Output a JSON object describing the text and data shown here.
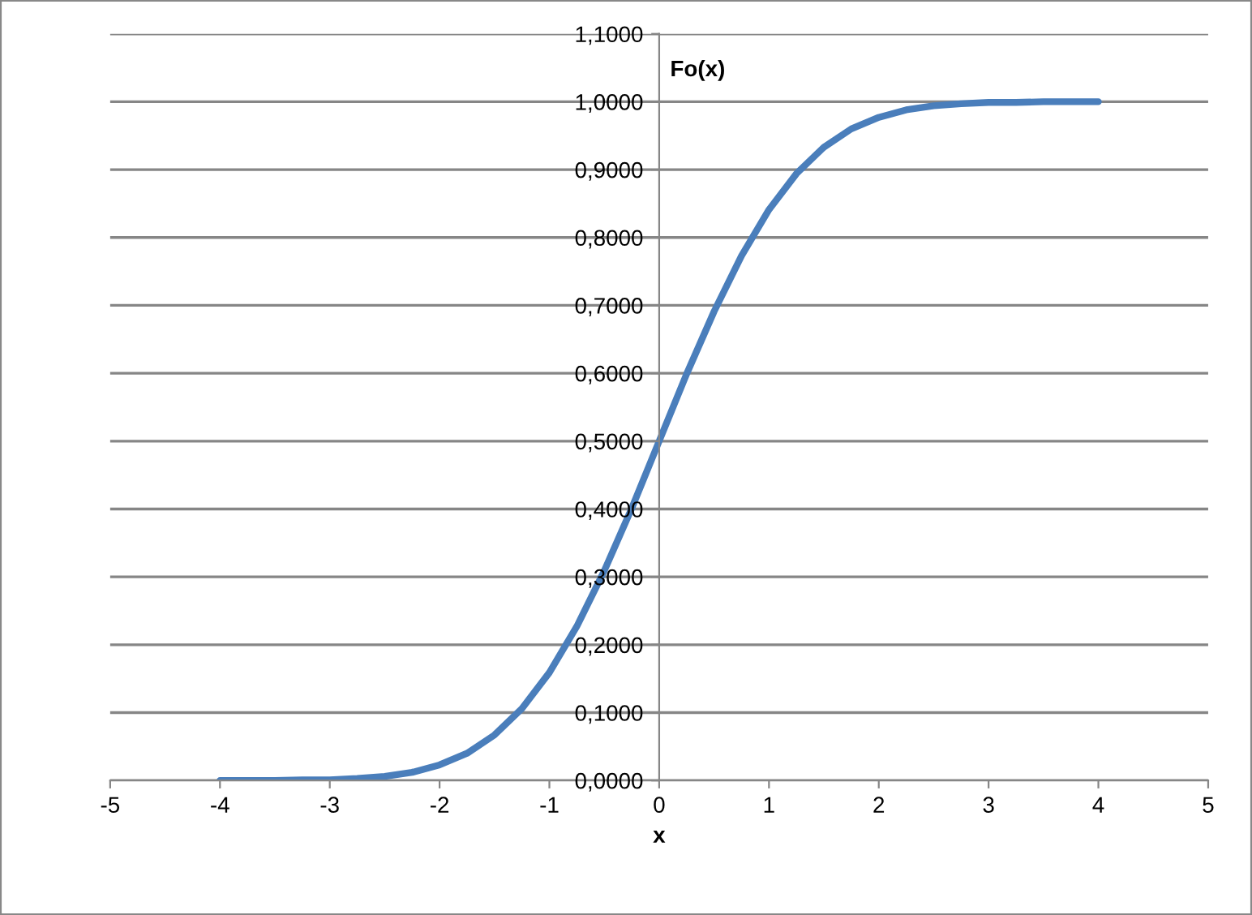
{
  "chart_data": {
    "type": "line",
    "xlabel": "x",
    "ylabel": "Fo(x)",
    "x": [
      -4,
      -3.75,
      -3.5,
      -3.25,
      -3,
      -2.75,
      -2.5,
      -2.25,
      -2,
      -1.75,
      -1.5,
      -1.25,
      -1,
      -0.75,
      -0.5,
      -0.25,
      0,
      0.25,
      0.5,
      0.75,
      1,
      1.25,
      1.5,
      1.75,
      2,
      2.25,
      2.5,
      2.75,
      3,
      3.25,
      3.5,
      3.75,
      4
    ],
    "series": [
      {
        "color": "#4a7ebb",
        "values": [
          0.0,
          0.0,
          0.0,
          0.001,
          0.001,
          0.003,
          0.006,
          0.012,
          0.023,
          0.04,
          0.067,
          0.106,
          0.159,
          0.227,
          0.309,
          0.401,
          0.5,
          0.599,
          0.691,
          0.773,
          0.841,
          0.894,
          0.933,
          0.96,
          0.977,
          0.988,
          0.994,
          0.997,
          0.999,
          0.999,
          1.0,
          1.0,
          1.0
        ]
      }
    ],
    "xlim": [
      -5,
      5
    ],
    "xticks": [
      -5,
      -4,
      -3,
      -2,
      -1,
      0,
      1,
      2,
      3,
      4,
      5
    ],
    "ylim": [
      0,
      1.1
    ],
    "yticks": [
      {
        "value": 0,
        "label": "0,0000"
      },
      {
        "value": 0.1,
        "label": "0,1000"
      },
      {
        "value": 0.2,
        "label": "0,2000"
      },
      {
        "value": 0.3,
        "label": "0,3000"
      },
      {
        "value": 0.4,
        "label": "0,4000"
      },
      {
        "value": 0.5,
        "label": "0,5000"
      },
      {
        "value": 0.6,
        "label": "0,6000"
      },
      {
        "value": 0.7,
        "label": "0,7000"
      },
      {
        "value": 0.8,
        "label": "0,8000"
      },
      {
        "value": 0.9,
        "label": "0,9000"
      },
      {
        "value": 1.0,
        "label": "1,0000"
      },
      {
        "value": 1.1,
        "label": "1,1000"
      }
    ],
    "grid": "y",
    "legend": false,
    "marker": "none",
    "line_style": "solid"
  }
}
